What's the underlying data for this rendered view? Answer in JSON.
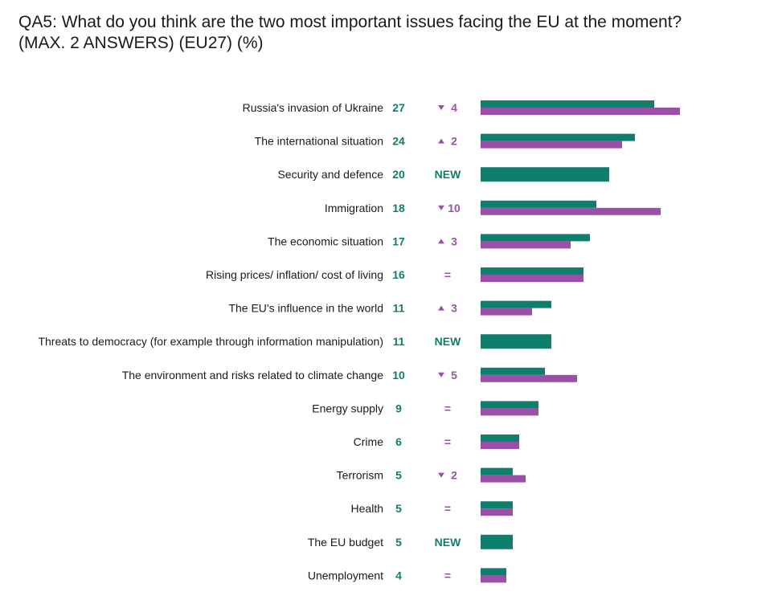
{
  "title": {
    "line1": "QA5: What do you think are the two most important issues facing the EU at the moment?",
    "line2": "(MAX. 2 ANSWERS) (EU27) (%)"
  },
  "colors": {
    "current": "#0f7f6d",
    "previous": "#9b4fa8",
    "text": "#1a1a1a"
  },
  "chart_data": {
    "type": "bar",
    "orientation": "horizontal",
    "grid": false,
    "categories": [
      "Russia's invasion of Ukraine",
      "The international situation",
      "Security and defence",
      "Immigration",
      "The economic situation",
      "Rising prices/ inflation/ cost of living",
      "The EU's influence in the world",
      "Threats to democracy (for example through information manipulation)",
      "The environment and risks related to climate change",
      "Energy supply",
      "Crime",
      "Terrorism",
      "Health",
      "The EU budget",
      "Unemployment"
    ],
    "series": [
      {
        "values": [
          27,
          24,
          20,
          18,
          17,
          16,
          11,
          11,
          10,
          9,
          6,
          5,
          5,
          5,
          4
        ]
      },
      {
        "values": [
          31,
          22,
          null,
          28,
          14,
          16,
          8,
          null,
          15,
          9,
          6,
          7,
          5,
          null,
          4
        ]
      }
    ],
    "value_labels": [
      "27",
      "24",
      "20",
      "18",
      "17",
      "16",
      "11",
      "11",
      "10",
      "9",
      "6",
      "5",
      "5",
      "5",
      "4"
    ],
    "changes": [
      {
        "dir": "down",
        "text": "4"
      },
      {
        "dir": "up",
        "text": "2"
      },
      {
        "dir": "new",
        "text": "NEW"
      },
      {
        "dir": "down",
        "text": "10"
      },
      {
        "dir": "up",
        "text": "3"
      },
      {
        "dir": "equal",
        "text": "="
      },
      {
        "dir": "up",
        "text": "3"
      },
      {
        "dir": "new",
        "text": "NEW"
      },
      {
        "dir": "down",
        "text": "5"
      },
      {
        "dir": "equal",
        "text": "="
      },
      {
        "dir": "equal",
        "text": "="
      },
      {
        "dir": "down",
        "text": "2"
      },
      {
        "dir": "equal",
        "text": "="
      },
      {
        "dir": "new",
        "text": "NEW"
      },
      {
        "dir": "equal",
        "text": "="
      }
    ],
    "xlim": [
      0,
      31
    ]
  }
}
